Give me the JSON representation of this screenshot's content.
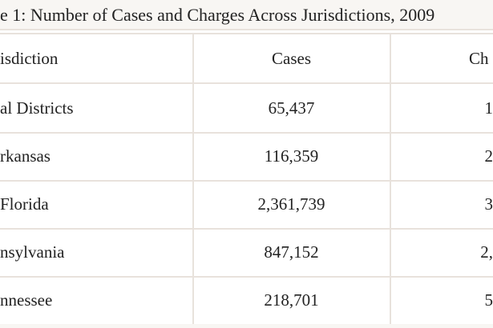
{
  "caption": "e 1: Number of Cases and Charges Across Jurisdictions, 2009",
  "columns": [
    "isdiction",
    "Cases",
    "Ch"
  ],
  "rows": [
    {
      "jurisdiction": "al Districts",
      "cases": "65,437",
      "charges": "1"
    },
    {
      "jurisdiction": "rkansas",
      "cases": "116,359",
      "charges": "2"
    },
    {
      "jurisdiction": "Florida",
      "cases": "2,361,739",
      "charges": "3"
    },
    {
      "jurisdiction": "nsylvania",
      "cases": "847,152",
      "charges": "2,"
    },
    {
      "jurisdiction": "nnessee",
      "cases": "218,701",
      "charges": "5"
    }
  ]
}
